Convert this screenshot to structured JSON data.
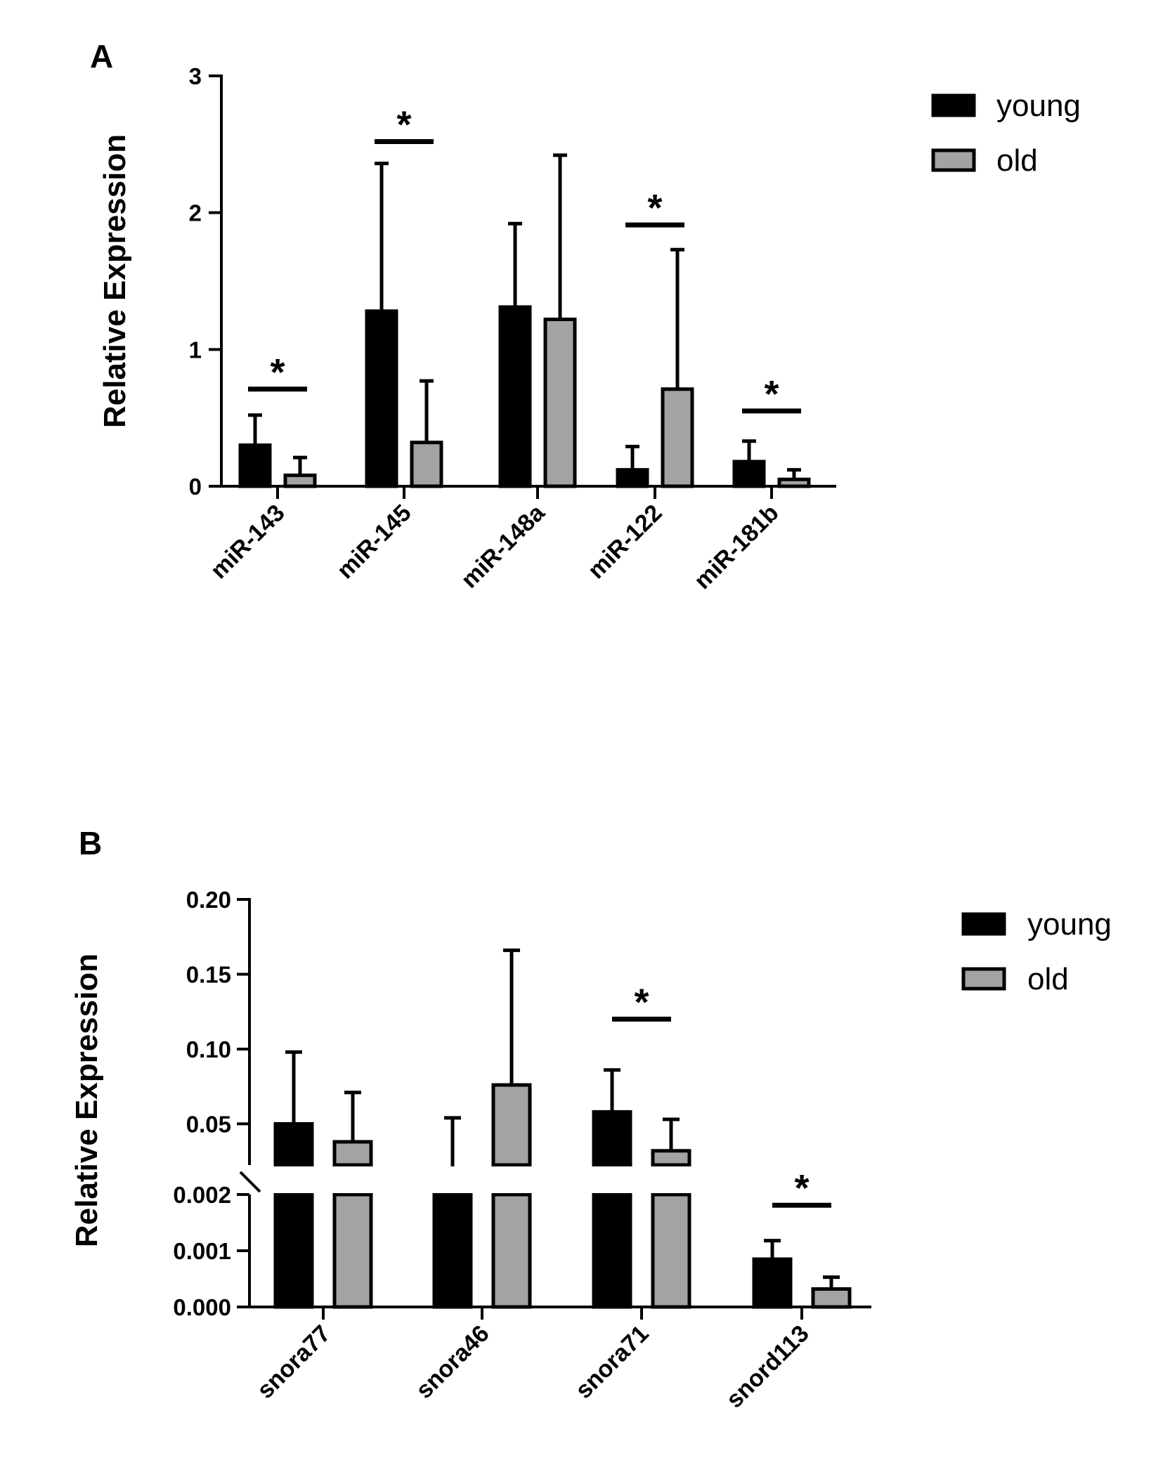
{
  "chart_data": [
    {
      "panel": "A",
      "type": "bar",
      "ylabel": "Relative Expression",
      "xlabel": "",
      "ylim": [
        0,
        3
      ],
      "yticks": [
        "0",
        "1",
        "2",
        "3"
      ],
      "categories": [
        "miR-143",
        "miR-145",
        "miR-148a",
        "miR-122",
        "miR-181b"
      ],
      "series": [
        {
          "name": "young",
          "color": "#000000",
          "values": [
            0.3,
            1.28,
            1.31,
            0.12,
            0.18
          ],
          "errors": [
            0.22,
            1.08,
            0.61,
            0.17,
            0.15
          ]
        },
        {
          "name": "old",
          "color": "#a3a3a3",
          "values": [
            0.08,
            0.32,
            1.22,
            0.71,
            0.05
          ],
          "errors": [
            0.13,
            0.45,
            1.2,
            1.02,
            0.07
          ]
        }
      ],
      "significance": [
        {
          "category": "miR-143",
          "label": "*",
          "bracket_y": 0.71
        },
        {
          "category": "miR-145",
          "label": "*",
          "bracket_y": 2.52
        },
        {
          "category": "miR-122",
          "label": "*",
          "bracket_y": 1.91
        },
        {
          "category": "miR-181b",
          "label": "*",
          "bracket_y": 0.55
        }
      ],
      "legend": [
        "young",
        "old"
      ],
      "legend_position": "top-right"
    },
    {
      "panel": "B",
      "type": "bar",
      "ylabel": "Relative Expression",
      "xlabel": "",
      "axis_break": true,
      "y_segments": {
        "lower": {
          "range": [
            0,
            0.002
          ],
          "ticks": [
            "0.000",
            "0.001",
            "0.002"
          ]
        },
        "upper": {
          "range": [
            0.0225,
            0.2
          ],
          "ticks": [
            "0.05",
            "0.10",
            "0.15",
            "0.20"
          ]
        }
      },
      "categories": [
        "snora77",
        "snora46",
        "snora71",
        "snord113"
      ],
      "series": [
        {
          "name": "young",
          "color": "#000000",
          "values": [
            0.05,
            0.02,
            0.058,
            0.00085
          ],
          "errors": [
            0.048,
            0.034,
            0.028,
            0.00033
          ]
        },
        {
          "name": "old",
          "color": "#a3a3a3",
          "values": [
            0.038,
            0.076,
            0.032,
            0.00032
          ],
          "errors": [
            0.033,
            0.09,
            0.021,
            0.00021
          ]
        }
      ],
      "significance": [
        {
          "category": "snora71",
          "label": "*",
          "bracket_y": 0.12
        },
        {
          "category": "snord113",
          "label": "*",
          "bracket_y": 0.00181
        }
      ],
      "legend": [
        "young",
        "old"
      ],
      "legend_position": "top-right"
    }
  ]
}
